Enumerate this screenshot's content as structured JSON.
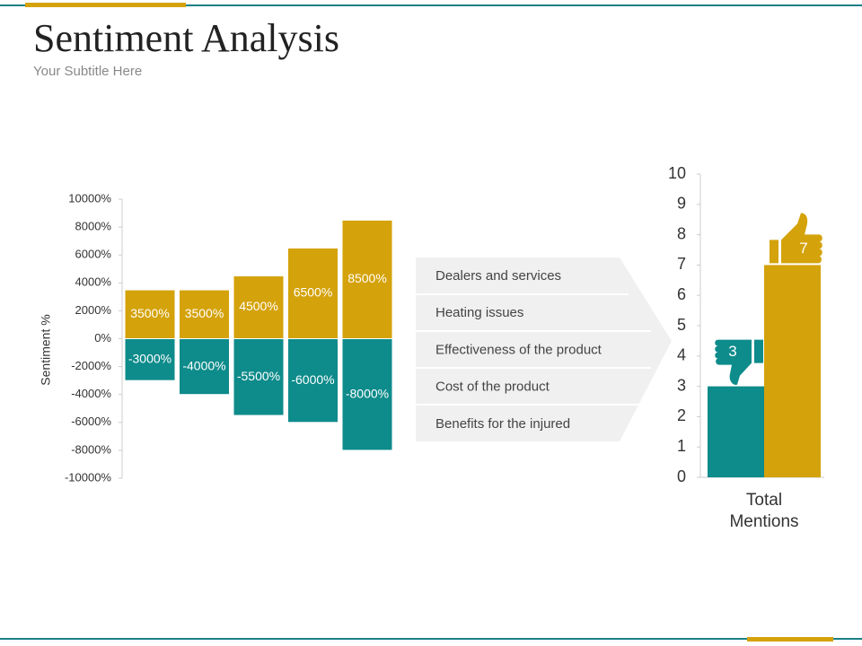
{
  "header": {
    "title": "Sentiment Analysis",
    "subtitle": "Your Subtitle Here"
  },
  "list": [
    "Dealers and services",
    "Heating issues",
    "Effectiveness of the product",
    "Cost of the product",
    "Benefits for the injured"
  ],
  "chart_data": [
    {
      "type": "bar",
      "stacked": true,
      "ylabel": "Sentiment %",
      "categories": [
        null,
        null,
        null,
        null,
        null
      ],
      "series": [
        {
          "color": "#d4a20a",
          "values": [
            3500,
            3500,
            4500,
            6500,
            8500
          ],
          "value_labels": [
            "3500%",
            "3500%",
            "4500%",
            "6500%",
            "8500%"
          ]
        },
        {
          "color": "#0e8b8b",
          "values": [
            -3000,
            -4000,
            -5500,
            -6000,
            -8000
          ],
          "value_labels": [
            "-3000%",
            "-4000%",
            "-5500%",
            "-6000%",
            "-8000%"
          ]
        }
      ],
      "ylim": [
        -10000,
        10000
      ],
      "yticks": [
        {
          "value": -10000,
          "label": "-10000%"
        },
        {
          "value": -8000,
          "label": "-8000%"
        },
        {
          "value": -6000,
          "label": "-6000%"
        },
        {
          "value": -4000,
          "label": "-4000%"
        },
        {
          "value": -2000,
          "label": "-2000%"
        },
        {
          "value": 0,
          "label": "0%"
        },
        {
          "value": 2000,
          "label": "2000%"
        },
        {
          "value": 4000,
          "label": "4000%"
        },
        {
          "value": 6000,
          "label": "6000%"
        },
        {
          "value": 8000,
          "label": "8000%"
        },
        {
          "value": 10000,
          "label": "10000%"
        }
      ]
    },
    {
      "type": "bar",
      "stacked": false,
      "categories": [
        "Total Mentions"
      ],
      "series": [
        {
          "color": "#0e8b8b",
          "values": [
            3
          ]
        },
        {
          "color": "#d4a20a",
          "values": [
            7
          ]
        }
      ],
      "ylim": [
        0,
        10
      ],
      "yticks": [
        0,
        1,
        2,
        3,
        4,
        5,
        6,
        7,
        8,
        9,
        10
      ]
    }
  ]
}
